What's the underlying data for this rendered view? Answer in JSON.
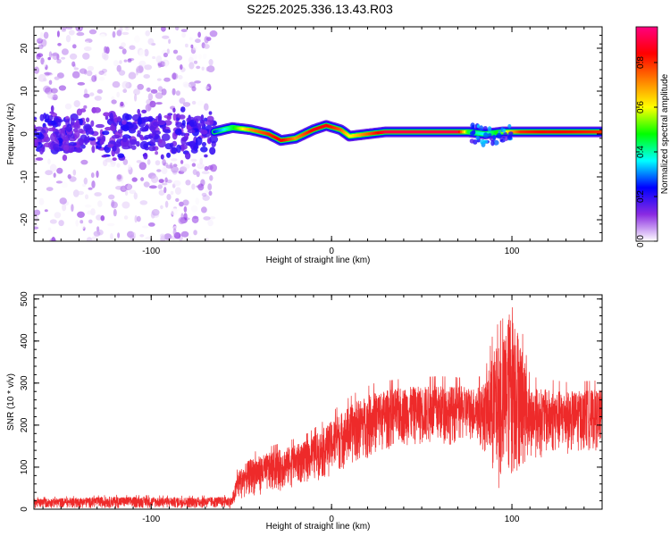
{
  "title": "S225.2025.336.13.43.R03",
  "chart_data": [
    {
      "type": "heatmap",
      "xlabel": "Height of straight line (km)",
      "ylabel": "Frequency (Hz)",
      "xlim": [
        -165,
        150
      ],
      "ylim": [
        -25,
        25
      ],
      "xticks": [
        -100,
        0,
        100
      ],
      "yticks": [
        -20,
        -10,
        0,
        10,
        20
      ],
      "grid": false,
      "colorbar": {
        "label": "Normalized spectral amplitude",
        "range": [
          0.0,
          0.96
        ],
        "ticks": [
          0.0,
          0.2,
          0.4,
          0.6,
          0.8
        ],
        "colormap": [
          "#ffffff",
          "#8a2be2",
          "#0000ff",
          "#00ffff",
          "#00ff00",
          "#ffff00",
          "#ff8000",
          "#ff0000",
          "#ff0080"
        ]
      },
      "ridge": {
        "name": "dominant frequency",
        "x": [
          -65,
          -55,
          -45,
          -35,
          -28,
          -20,
          -10,
          -3,
          5,
          10,
          30,
          50,
          70,
          76,
          85,
          95,
          105,
          120,
          150
        ],
        "frequency": [
          0.5,
          1.5,
          1.0,
          0.0,
          -1.5,
          -1.0,
          1.0,
          2.0,
          1.0,
          -0.5,
          0.5,
          0.5,
          0.5,
          0.5,
          0.0,
          0.5,
          0.5,
          0.5,
          0.5
        ],
        "amplitude": [
          0.25,
          0.45,
          0.7,
          0.8,
          0.85,
          0.7,
          0.85,
          0.85,
          0.75,
          0.6,
          0.9,
          0.9,
          0.9,
          0.45,
          0.35,
          0.55,
          0.8,
          0.85,
          0.8
        ]
      },
      "noise_region": {
        "x": [
          -165,
          -65
        ],
        "amplitude_range": [
          0.05,
          0.2
        ]
      }
    },
    {
      "type": "line",
      "xlabel": "Height of straight line (km)",
      "ylabel": "SNR (10 * v/v)",
      "xlim": [
        -165,
        150
      ],
      "ylim": [
        0,
        510
      ],
      "xticks": [
        -100,
        0,
        100
      ],
      "yticks": [
        0,
        100,
        200,
        300,
        400,
        500
      ],
      "grid": false,
      "series": [
        {
          "color": "#ee2a2a",
          "x": [
            -165,
            -120,
            -80,
            -55,
            -52,
            -45,
            -30,
            -15,
            -5,
            5,
            15,
            25,
            40,
            60,
            80,
            85,
            90,
            95,
            100,
            110,
            130,
            150
          ],
          "upper": [
            25,
            30,
            28,
            30,
            90,
            120,
            140,
            160,
            190,
            230,
            260,
            280,
            290,
            295,
            290,
            300,
            380,
            400,
            500,
            290,
            280,
            285
          ],
          "lower": [
            2,
            2,
            2,
            2,
            20,
            30,
            40,
            60,
            70,
            90,
            110,
            130,
            150,
            150,
            160,
            130,
            50,
            40,
            60,
            120,
            130,
            140
          ]
        }
      ]
    }
  ]
}
